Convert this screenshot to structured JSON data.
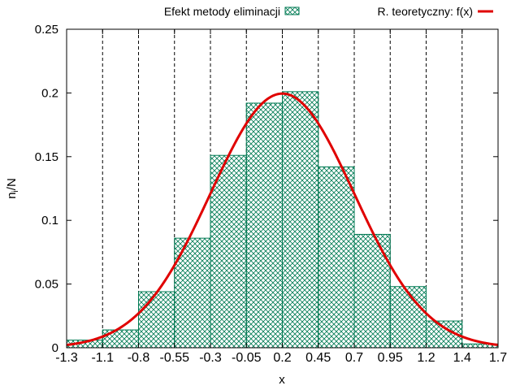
{
  "chart_data": {
    "type": "bar",
    "xlabel": "x",
    "ylabel_main": "n",
    "ylabel_sub": "i",
    "ylabel_tail": "/N",
    "xlim": [
      -1.3,
      1.7
    ],
    "ylim": [
      0,
      0.25
    ],
    "x_ticks": [
      "-1.3",
      "-1.1",
      "-0.8",
      "-0.55",
      "-0.3",
      "-0.05",
      "0.2",
      "0.45",
      "0.7",
      "0.95",
      "1.2",
      "1.4",
      "1.7"
    ],
    "x_tick_values": [
      -1.3,
      -1.05,
      -0.8,
      -0.55,
      -0.3,
      -0.05,
      0.2,
      0.45,
      0.7,
      0.95,
      1.2,
      1.45,
      1.7
    ],
    "y_ticks": [
      "0",
      "0.05",
      "0.1",
      "0.15",
      "0.2",
      "0.25"
    ],
    "y_tick_values": [
      0,
      0.05,
      0.1,
      0.15,
      0.2,
      0.25
    ],
    "grid": "vertical dashed at x ticks",
    "legend_position": "top",
    "histogram": {
      "name": "Efekt metody eliminacji",
      "bin_edges": [
        -1.3,
        -1.05,
        -0.8,
        -0.55,
        -0.3,
        -0.05,
        0.2,
        0.45,
        0.7,
        0.95,
        1.2,
        1.45,
        1.7
      ],
      "values": [
        0.006,
        0.014,
        0.044,
        0.086,
        0.151,
        0.192,
        0.201,
        0.142,
        0.089,
        0.048,
        0.021,
        0.003
      ],
      "color": "#007a53"
    },
    "curve": {
      "name": "R. teoretyczny: f(x)",
      "peak_x": 0.2,
      "peak_y": 0.1995,
      "sigma": 0.5,
      "color": "#e00000"
    }
  }
}
